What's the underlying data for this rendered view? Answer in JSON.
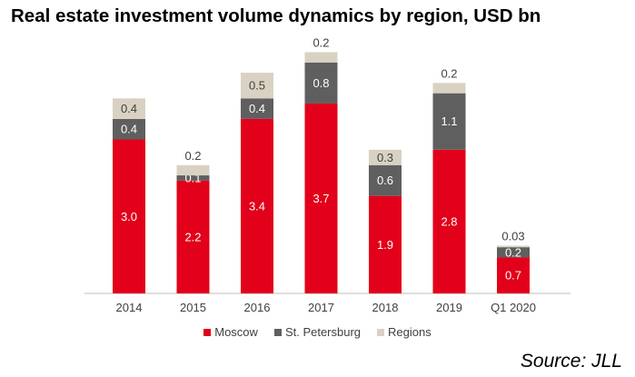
{
  "chart_data": {
    "type": "bar",
    "stacked": true,
    "title": "Real estate investment volume dynamics by region, USD bn",
    "categories": [
      "2014",
      "2015",
      "2016",
      "2017",
      "2018",
      "2019",
      "Q1 2020"
    ],
    "series": [
      {
        "name": "Moscow",
        "color": "#e2001a",
        "values": [
          3.0,
          2.2,
          3.4,
          3.7,
          1.9,
          2.8,
          0.7
        ],
        "labels": [
          "3.0",
          "2.2",
          "3.4",
          "3.7",
          "1.9",
          "2.8",
          "0.7"
        ]
      },
      {
        "name": "St. Petersburg",
        "color": "#5f5f5f",
        "values": [
          0.4,
          0.1,
          0.4,
          0.8,
          0.6,
          1.1,
          0.2
        ],
        "labels": [
          "0.4",
          "0.1",
          "0.4",
          "0.8",
          "0.6",
          "1.1",
          "0.2"
        ]
      },
      {
        "name": "Regions",
        "color": "#d9d2c3",
        "values": [
          0.4,
          0.2,
          0.5,
          0.2,
          0.3,
          0.2,
          0.03
        ],
        "labels": [
          "0.4",
          "0.2",
          "0.5",
          "0.2",
          "0.3",
          "0.2",
          "0.03"
        ]
      }
    ],
    "ylim": [
      0,
      5
    ],
    "grid": false,
    "legend_position": "bottom"
  },
  "source": "Source: JLL"
}
